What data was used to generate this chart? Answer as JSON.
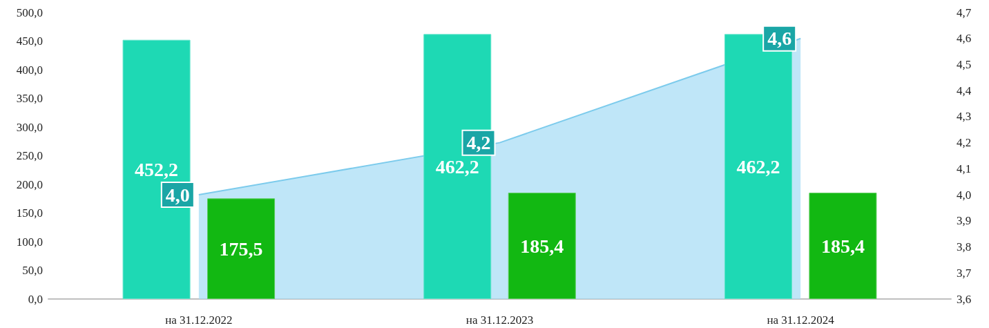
{
  "chart_data": {
    "type": "bar",
    "categories": [
      "на 31.12.2022",
      "на 31.12.2023",
      "на 31.12.2024"
    ],
    "series": [
      {
        "color": "#1ed9b4",
        "values": [
          452.2,
          462.2,
          462.2
        ],
        "value_labels": [
          "452,2",
          "462,2",
          "462,2"
        ]
      },
      {
        "color": "#12b812",
        "values": [
          175.5,
          185.4,
          185.4
        ],
        "value_labels": [
          "175,5",
          "185,4",
          "185,4"
        ]
      },
      {
        "type": "area",
        "axis": "y2",
        "color": "#a9def6",
        "values": [
          4.0,
          4.2,
          4.6
        ],
        "value_labels": [
          "4,0",
          "4,2",
          "4,6"
        ]
      }
    ],
    "ylim": [
      0,
      500
    ],
    "yticks": [
      {
        "value": 0,
        "label": "0,0"
      },
      {
        "value": 50,
        "label": "50,0"
      },
      {
        "value": 100,
        "label": "100,0"
      },
      {
        "value": 150,
        "label": "150,0"
      },
      {
        "value": 200,
        "label": "200,0"
      },
      {
        "value": 250,
        "label": "250,0"
      },
      {
        "value": 300,
        "label": "300,0"
      },
      {
        "value": 350,
        "label": "350,0"
      },
      {
        "value": 400,
        "label": "400,0"
      },
      {
        "value": 450,
        "label": "450,0"
      },
      {
        "value": 500,
        "label": "500,0"
      }
    ],
    "y2lim": [
      3.6,
      4.7
    ],
    "y2ticks": [
      {
        "value": 3.6,
        "label": "3,6"
      },
      {
        "value": 3.7,
        "label": "3,7"
      },
      {
        "value": 3.8,
        "label": "3,8"
      },
      {
        "value": 3.9,
        "label": "3,9"
      },
      {
        "value": 4.0,
        "label": "4,0"
      },
      {
        "value": 4.1,
        "label": "4,1"
      },
      {
        "value": 4.2,
        "label": "4,2"
      },
      {
        "value": 4.3,
        "label": "4,3"
      },
      {
        "value": 4.4,
        "label": "4,4"
      },
      {
        "value": 4.5,
        "label": "4,5"
      },
      {
        "value": 4.6,
        "label": "4,6"
      },
      {
        "value": 4.7,
        "label": "4,7"
      }
    ],
    "grid": false
  }
}
